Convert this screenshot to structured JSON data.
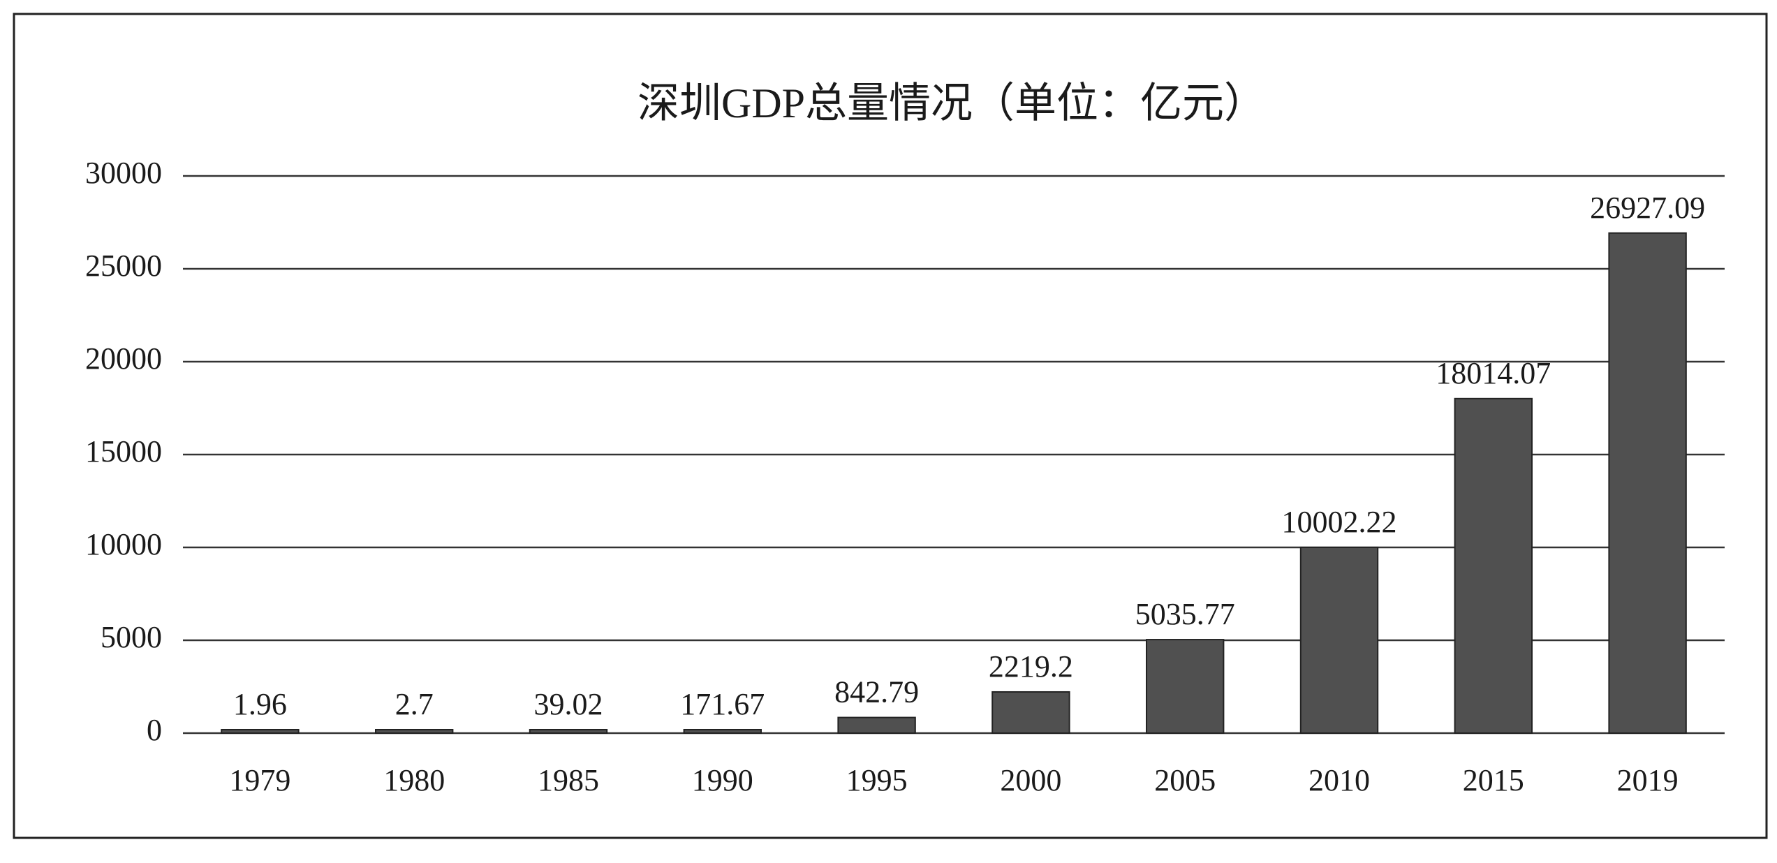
{
  "chart_data": {
    "type": "bar",
    "title": "深圳GDP总量情况（单位：亿元）",
    "categories": [
      "1979",
      "1980",
      "1985",
      "1990",
      "1995",
      "2000",
      "2005",
      "2010",
      "2015",
      "2019"
    ],
    "values": [
      1.96,
      2.7,
      39.02,
      171.67,
      842.79,
      2219.2,
      5035.77,
      10002.22,
      18014.07,
      26927.09
    ],
    "color": "#505050",
    "ylim": [
      0,
      30000
    ],
    "yticks": [
      0,
      5000,
      10000,
      15000,
      20000,
      25000,
      30000
    ],
    "grid": true
  }
}
